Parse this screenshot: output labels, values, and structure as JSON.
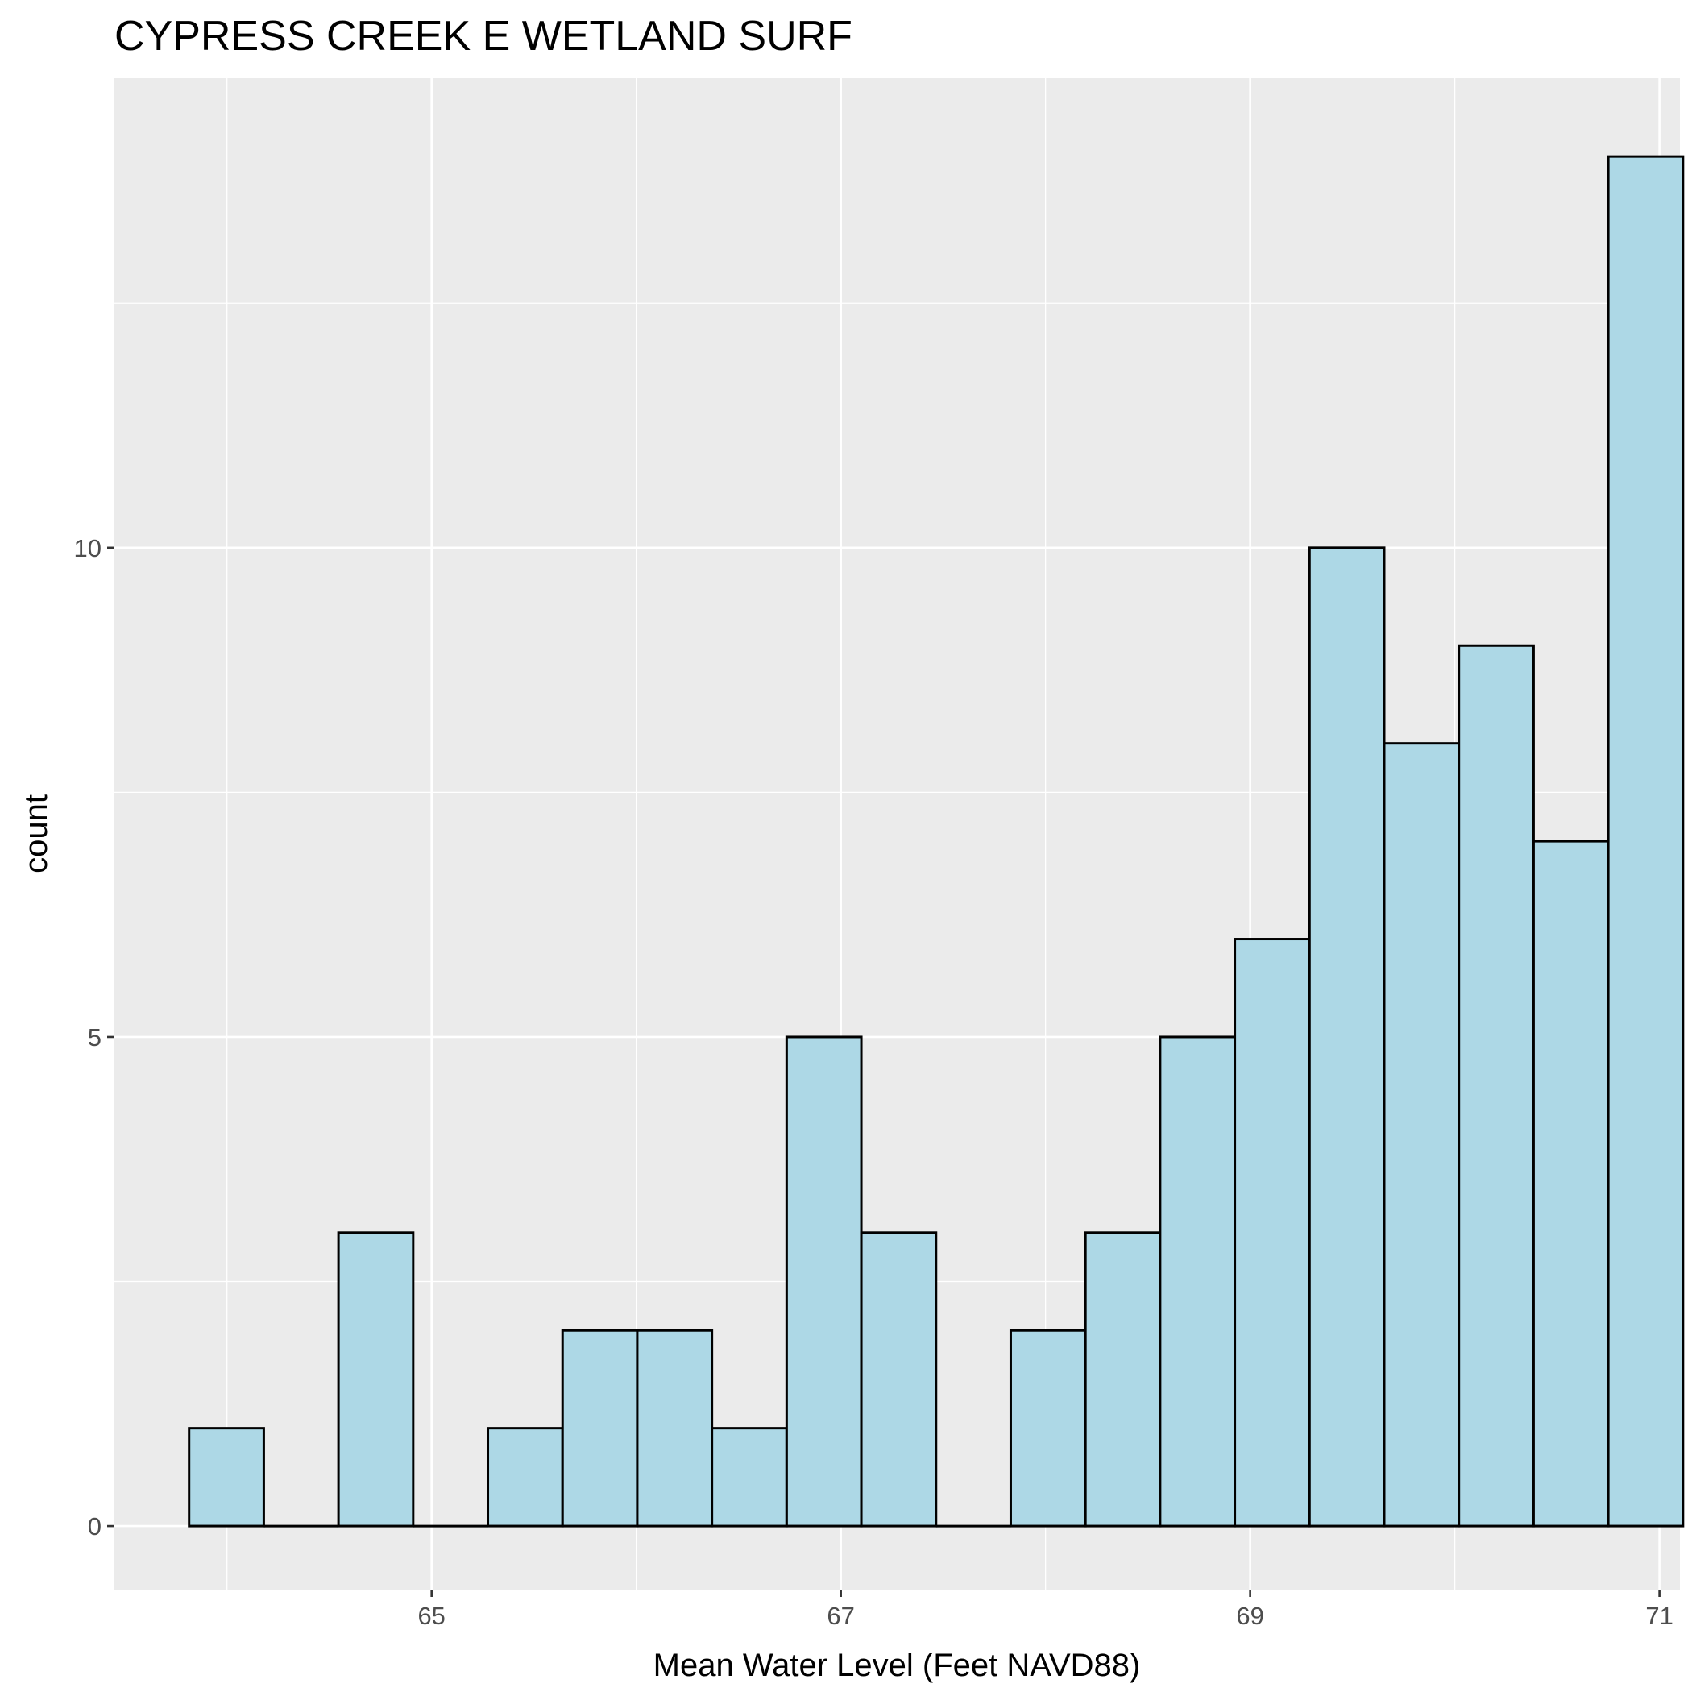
{
  "chart_data": {
    "type": "bar",
    "title": "CYPRESS CREEK E WETLAND SURF",
    "xlabel": "Mean Water Level (Feet NAVD88)",
    "ylabel": "count",
    "xlim": [
      63.45,
      71.1
    ],
    "ylim": [
      -0.65,
      14.8
    ],
    "x_ticks": [
      65,
      67,
      69,
      71
    ],
    "x_tick_labels": [
      "65",
      "67",
      "69",
      "71"
    ],
    "y_ticks": [
      0,
      5,
      10
    ],
    "y_tick_labels": [
      "0",
      "5",
      "10"
    ],
    "bin_width": 0.365,
    "bin_start": 63.815,
    "counts": [
      1,
      0,
      3,
      0,
      1,
      2,
      2,
      1,
      5,
      3,
      0,
      2,
      3,
      5,
      6,
      10,
      8,
      9,
      7,
      14
    ],
    "grid": true,
    "panel_background": "#ebebeb",
    "bar_fill": "#add8e6",
    "bar_stroke": "#000000"
  }
}
